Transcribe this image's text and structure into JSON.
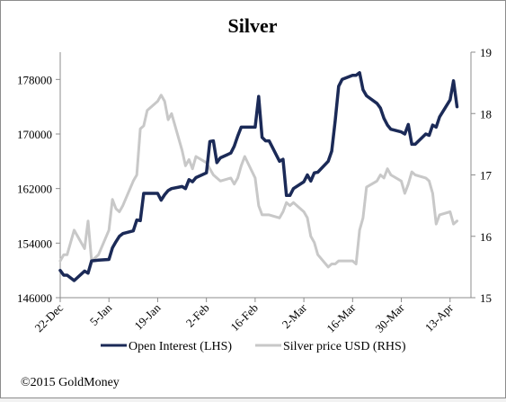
{
  "chart_data": {
    "type": "line",
    "title": "Silver",
    "xlabel": "",
    "ylabel_left": "",
    "ylabel_right": "",
    "x_tick_labels": [
      "22-Dec",
      "5-Jan",
      "19-Jan",
      "2-Feb",
      "16-Feb",
      "2-Mar",
      "16-Mar",
      "30-Mar",
      "13-Apr"
    ],
    "x_range": [
      "2014-12-22",
      "2015-04-19"
    ],
    "y_left": {
      "range": [
        146000,
        182000
      ],
      "ticks": [
        146000,
        154000,
        162000,
        170000,
        178000
      ],
      "tick_labels": [
        "146000",
        "154000",
        "162000",
        "170000",
        "178000"
      ]
    },
    "y_right": {
      "range": [
        15,
        19
      ],
      "ticks": [
        15,
        16,
        17,
        18,
        19
      ],
      "tick_labels": [
        "15",
        "16",
        "17",
        "18",
        "19"
      ]
    },
    "grid": false,
    "legend_position": "bottom",
    "series": [
      {
        "name": "Open Interest (LHS)",
        "axis": "left",
        "color": "#1b2a57",
        "points": [
          [
            "2014-12-22",
            150000
          ],
          [
            "2014-12-23",
            149300
          ],
          [
            "2014-12-24",
            149300
          ],
          [
            "2014-12-26",
            148500
          ],
          [
            "2014-12-29",
            149900
          ],
          [
            "2014-12-30",
            149600
          ],
          [
            "2014-12-31",
            151400
          ],
          [
            "2015-01-02",
            151500
          ],
          [
            "2015-01-05",
            151600
          ],
          [
            "2015-01-06",
            153300
          ],
          [
            "2015-01-07",
            154200
          ],
          [
            "2015-01-08",
            155000
          ],
          [
            "2015-01-09",
            155400
          ],
          [
            "2015-01-12",
            155800
          ],
          [
            "2015-01-13",
            157400
          ],
          [
            "2015-01-14",
            157300
          ],
          [
            "2015-01-15",
            161300
          ],
          [
            "2015-01-16",
            161300
          ],
          [
            "2015-01-19",
            161300
          ],
          [
            "2015-01-20",
            160300
          ],
          [
            "2015-01-21",
            161100
          ],
          [
            "2015-01-22",
            161700
          ],
          [
            "2015-01-23",
            162000
          ],
          [
            "2015-01-26",
            162300
          ],
          [
            "2015-01-27",
            162000
          ],
          [
            "2015-01-28",
            163300
          ],
          [
            "2015-01-29",
            163000
          ],
          [
            "2015-01-30",
            163600
          ],
          [
            "2015-02-02",
            164300
          ],
          [
            "2015-02-03",
            168900
          ],
          [
            "2015-02-04",
            169000
          ],
          [
            "2015-02-05",
            165800
          ],
          [
            "2015-02-06",
            166500
          ],
          [
            "2015-02-09",
            167200
          ],
          [
            "2015-02-10",
            168200
          ],
          [
            "2015-02-11",
            169700
          ],
          [
            "2015-02-12",
            171000
          ],
          [
            "2015-02-13",
            171000
          ],
          [
            "2015-02-16",
            171000
          ],
          [
            "2015-02-17",
            175500
          ],
          [
            "2015-02-18",
            169500
          ],
          [
            "2015-02-19",
            169000
          ],
          [
            "2015-02-20",
            169000
          ],
          [
            "2015-02-23",
            166000
          ],
          [
            "2015-02-24",
            166300
          ],
          [
            "2015-02-25",
            161000
          ],
          [
            "2015-02-26",
            161000
          ],
          [
            "2015-02-27",
            162000
          ],
          [
            "2015-03-02",
            163000
          ],
          [
            "2015-03-03",
            164000
          ],
          [
            "2015-03-04",
            163100
          ],
          [
            "2015-03-05",
            164300
          ],
          [
            "2015-03-06",
            164400
          ],
          [
            "2015-03-09",
            166000
          ],
          [
            "2015-03-10",
            167500
          ],
          [
            "2015-03-11",
            172000
          ],
          [
            "2015-03-12",
            177000
          ],
          [
            "2015-03-13",
            178000
          ],
          [
            "2015-03-16",
            178600
          ],
          [
            "2015-03-17",
            178600
          ],
          [
            "2015-03-18",
            179000
          ],
          [
            "2015-03-19",
            176500
          ],
          [
            "2015-03-20",
            175600
          ],
          [
            "2015-03-23",
            174500
          ],
          [
            "2015-03-24",
            173800
          ],
          [
            "2015-03-25",
            172300
          ],
          [
            "2015-03-26",
            171300
          ],
          [
            "2015-03-27",
            170700
          ],
          [
            "2015-03-30",
            170300
          ],
          [
            "2015-03-31",
            170000
          ],
          [
            "2015-04-01",
            171400
          ],
          [
            "2015-04-02",
            168500
          ],
          [
            "2015-04-03",
            168500
          ],
          [
            "2015-04-06",
            170000
          ],
          [
            "2015-04-07",
            169800
          ],
          [
            "2015-04-08",
            171300
          ],
          [
            "2015-04-09",
            171000
          ],
          [
            "2015-04-10",
            172500
          ],
          [
            "2015-04-13",
            175000
          ],
          [
            "2015-04-14",
            177800
          ],
          [
            "2015-04-15",
            174000
          ]
        ]
      },
      {
        "name": "Silver price USD (RHS)",
        "axis": "right",
        "color": "#c8c8c8",
        "points": [
          [
            "2014-12-22",
            15.6
          ],
          [
            "2014-12-23",
            15.7
          ],
          [
            "2014-12-24",
            15.7
          ],
          [
            "2014-12-26",
            16.1
          ],
          [
            "2014-12-29",
            15.8
          ],
          [
            "2014-12-30",
            16.25
          ],
          [
            "2014-12-31",
            15.6
          ],
          [
            "2015-01-02",
            15.7
          ],
          [
            "2015-01-05",
            16.1
          ],
          [
            "2015-01-06",
            16.6
          ],
          [
            "2015-01-07",
            16.45
          ],
          [
            "2015-01-08",
            16.4
          ],
          [
            "2015-01-09",
            16.5
          ],
          [
            "2015-01-12",
            16.9
          ],
          [
            "2015-01-13",
            17.0
          ],
          [
            "2015-01-14",
            17.75
          ],
          [
            "2015-01-15",
            17.8
          ],
          [
            "2015-01-16",
            18.05
          ],
          [
            "2015-01-19",
            18.2
          ],
          [
            "2015-01-20",
            18.3
          ],
          [
            "2015-01-21",
            18.2
          ],
          [
            "2015-01-22",
            17.9
          ],
          [
            "2015-01-23",
            18.0
          ],
          [
            "2015-01-26",
            17.4
          ],
          [
            "2015-01-27",
            17.15
          ],
          [
            "2015-01-28",
            17.25
          ],
          [
            "2015-01-29",
            17.1
          ],
          [
            "2015-01-30",
            17.3
          ],
          [
            "2015-02-02",
            17.2
          ],
          [
            "2015-02-03",
            17.1
          ],
          [
            "2015-02-04",
            17.0
          ],
          [
            "2015-02-05",
            16.95
          ],
          [
            "2015-02-06",
            16.9
          ],
          [
            "2015-02-09",
            16.95
          ],
          [
            "2015-02-10",
            16.85
          ],
          [
            "2015-02-11",
            16.95
          ],
          [
            "2015-02-12",
            17.15
          ],
          [
            "2015-02-13",
            17.3
          ],
          [
            "2015-02-16",
            16.95
          ],
          [
            "2015-02-17",
            16.5
          ],
          [
            "2015-02-18",
            16.35
          ],
          [
            "2015-02-19",
            16.35
          ],
          [
            "2015-02-20",
            16.35
          ],
          [
            "2015-02-23",
            16.3
          ],
          [
            "2015-02-24",
            16.4
          ],
          [
            "2015-02-25",
            16.55
          ],
          [
            "2015-02-26",
            16.5
          ],
          [
            "2015-02-27",
            16.55
          ],
          [
            "2015-03-02",
            16.4
          ],
          [
            "2015-03-03",
            16.3
          ],
          [
            "2015-03-04",
            16.0
          ],
          [
            "2015-03-05",
            15.9
          ],
          [
            "2015-03-06",
            15.7
          ],
          [
            "2015-03-09",
            15.5
          ],
          [
            "2015-03-10",
            15.55
          ],
          [
            "2015-03-11",
            15.55
          ],
          [
            "2015-03-12",
            15.6
          ],
          [
            "2015-03-13",
            15.6
          ],
          [
            "2015-03-16",
            15.6
          ],
          [
            "2015-03-17",
            15.55
          ],
          [
            "2015-03-18",
            16.1
          ],
          [
            "2015-03-19",
            16.3
          ],
          [
            "2015-03-20",
            16.8
          ],
          [
            "2015-03-23",
            16.9
          ],
          [
            "2015-03-24",
            17.0
          ],
          [
            "2015-03-25",
            16.95
          ],
          [
            "2015-03-26",
            17.1
          ],
          [
            "2015-03-27",
            17.0
          ],
          [
            "2015-03-30",
            16.9
          ],
          [
            "2015-03-31",
            16.7
          ],
          [
            "2015-04-01",
            16.85
          ],
          [
            "2015-04-02",
            17.05
          ],
          [
            "2015-04-03",
            17.0
          ],
          [
            "2015-04-06",
            16.95
          ],
          [
            "2015-04-07",
            16.9
          ],
          [
            "2015-04-08",
            16.7
          ],
          [
            "2015-04-09",
            16.2
          ],
          [
            "2015-04-10",
            16.35
          ],
          [
            "2015-04-13",
            16.4
          ],
          [
            "2015-04-14",
            16.2
          ],
          [
            "2015-04-15",
            16.25
          ]
        ]
      }
    ]
  },
  "footer": {
    "copyright": "©2015 GoldMoney"
  }
}
